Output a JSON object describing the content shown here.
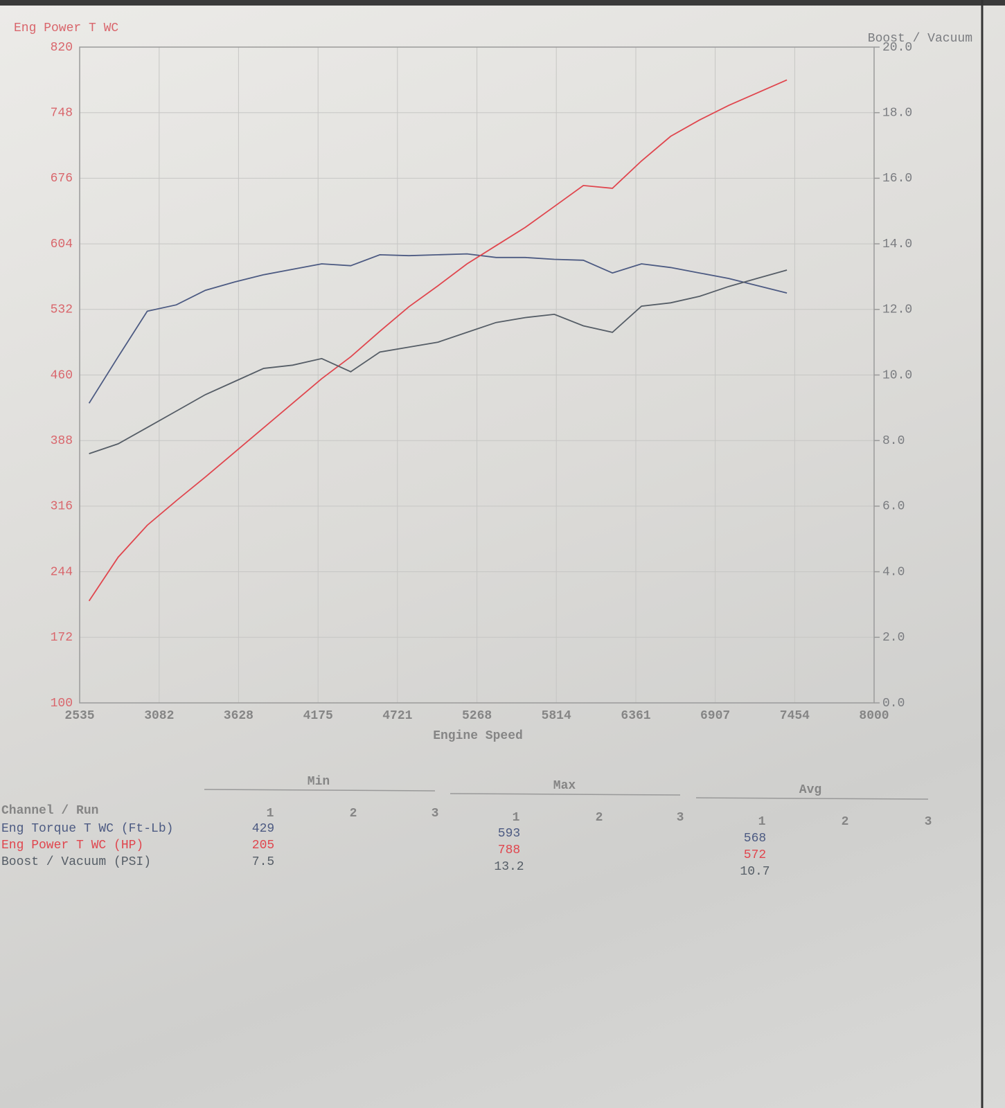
{
  "chart_data": {
    "type": "line",
    "title": "Eng Power T WC",
    "y2label": "Boost / Vacuum",
    "xlabel": "Engine Speed",
    "x": [
      2600,
      2800,
      3000,
      3200,
      3400,
      3600,
      3800,
      4000,
      4200,
      4400,
      4600,
      4800,
      5000,
      5200,
      5400,
      5600,
      5800,
      6000,
      6200,
      6400,
      6600,
      6800,
      7000,
      7200,
      7400
    ],
    "series": [
      {
        "name": "Eng Torque T WC (Ft-Lb)",
        "color": "#4c5a82",
        "values": [
          429,
          480,
          530,
          537,
          553,
          562,
          570,
          576,
          582,
          580,
          592,
          591,
          592,
          593,
          589,
          589,
          587,
          586,
          572,
          582,
          578,
          572,
          566,
          558,
          550
        ]
      },
      {
        "name": "Eng Power T WC (HP)",
        "color": "#e0464e",
        "values": [
          212,
          260,
          295,
          322,
          348,
          375,
          402,
          429,
          456,
          480,
          508,
          535,
          558,
          582,
          602,
          622,
          645,
          668,
          665,
          695,
          722,
          740,
          756,
          770,
          784
        ]
      },
      {
        "name": "Boost / Vacuum (PSI)",
        "color": "#555d66",
        "axis": "y2",
        "values": [
          7.6,
          7.9,
          8.4,
          8.9,
          9.4,
          9.8,
          10.2,
          10.3,
          10.5,
          10.1,
          10.7,
          10.85,
          11.0,
          11.3,
          11.6,
          11.75,
          11.85,
          11.5,
          11.3,
          12.1,
          12.2,
          12.4,
          12.7,
          12.95,
          13.2
        ]
      }
    ],
    "xlim": [
      2535,
      8000
    ],
    "xticks": [
      2535,
      3082,
      3628,
      4175,
      4721,
      5268,
      5814,
      6361,
      6907,
      7454,
      8000
    ],
    "ylim": [
      100,
      820
    ],
    "yticks": [
      100,
      172,
      244,
      316,
      388,
      460,
      532,
      604,
      676,
      748,
      820
    ],
    "y2lim": [
      0,
      20
    ],
    "y2ticks": [
      {
        "value": 0,
        "label": "0.0"
      },
      {
        "value": 2,
        "label": "2.0"
      },
      {
        "value": 4,
        "label": "4.0"
      },
      {
        "value": 6,
        "label": "6.0"
      },
      {
        "value": 8,
        "label": "8.0"
      },
      {
        "value": 10,
        "label": "10.0"
      },
      {
        "value": 12,
        "label": "12.0"
      },
      {
        "value": 14,
        "label": "14.0"
      },
      {
        "value": 16,
        "label": "16.0"
      },
      {
        "value": 18,
        "label": "18.0"
      },
      {
        "value": 20,
        "label": "20.0"
      }
    ],
    "grid": true
  },
  "table": {
    "header": "Channel / Run",
    "groups": [
      "Min",
      "Max",
      "Avg"
    ],
    "runs": [
      1,
      2,
      3
    ],
    "rows": [
      [
        429,
        null,
        null,
        593,
        null,
        null,
        568,
        null,
        null
      ],
      [
        205,
        null,
        null,
        788,
        null,
        null,
        572,
        null,
        null
      ],
      [
        7.5,
        null,
        null,
        13.2,
        null,
        null,
        10.7,
        null,
        null
      ]
    ]
  }
}
